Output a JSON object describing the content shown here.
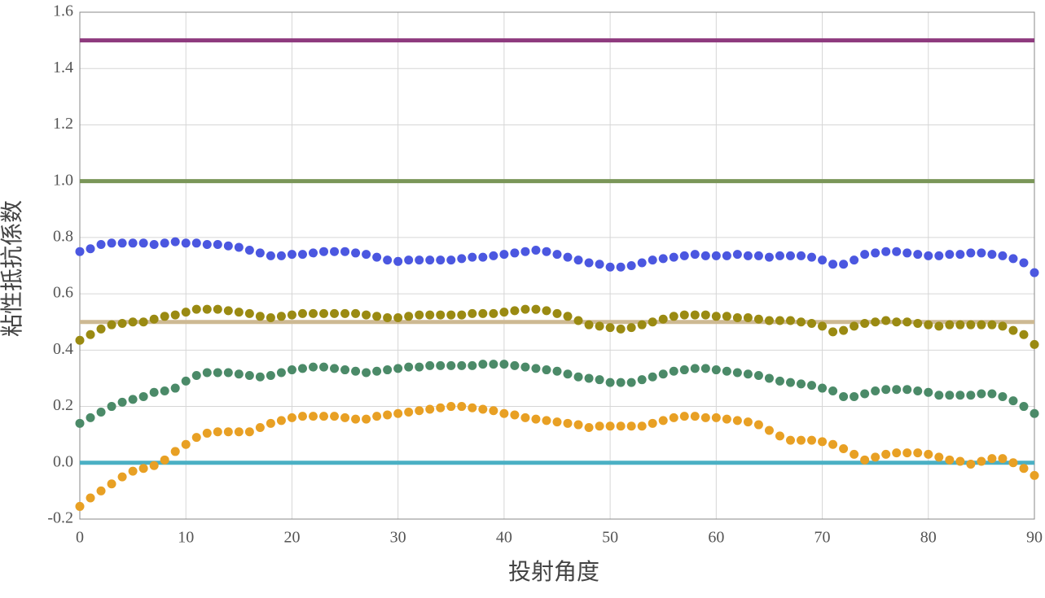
{
  "chart_data": {
    "type": "scatter",
    "x_label": "投射角度",
    "y_label": "粘性抵抗係数",
    "x": [
      0,
      1,
      2,
      3,
      4,
      5,
      6,
      7,
      8,
      9,
      10,
      11,
      12,
      13,
      14,
      15,
      16,
      17,
      18,
      19,
      20,
      21,
      22,
      23,
      24,
      25,
      26,
      27,
      28,
      29,
      30,
      31,
      32,
      33,
      34,
      35,
      36,
      37,
      38,
      39,
      40,
      41,
      42,
      43,
      44,
      45,
      46,
      47,
      48,
      49,
      50,
      51,
      52,
      53,
      54,
      55,
      56,
      57,
      58,
      59,
      60,
      61,
      62,
      63,
      64,
      65,
      66,
      67,
      68,
      69,
      70,
      71,
      72,
      73,
      74,
      75,
      76,
      77,
      78,
      79,
      80,
      81,
      82,
      83,
      84,
      85,
      86,
      87,
      88,
      89,
      90
    ],
    "series": [
      {
        "color": "#4b57e0",
        "values": [
          0.75,
          0.76,
          0.775,
          0.78,
          0.78,
          0.78,
          0.78,
          0.775,
          0.78,
          0.785,
          0.78,
          0.78,
          0.775,
          0.775,
          0.77,
          0.765,
          0.755,
          0.745,
          0.735,
          0.735,
          0.74,
          0.74,
          0.745,
          0.75,
          0.75,
          0.75,
          0.745,
          0.74,
          0.73,
          0.72,
          0.715,
          0.72,
          0.72,
          0.72,
          0.72,
          0.72,
          0.725,
          0.73,
          0.73,
          0.735,
          0.74,
          0.745,
          0.75,
          0.755,
          0.75,
          0.74,
          0.73,
          0.72,
          0.71,
          0.705,
          0.695,
          0.695,
          0.7,
          0.71,
          0.72,
          0.725,
          0.73,
          0.735,
          0.74,
          0.735,
          0.735,
          0.735,
          0.74,
          0.735,
          0.735,
          0.73,
          0.735,
          0.735,
          0.735,
          0.73,
          0.72,
          0.705,
          0.705,
          0.72,
          0.74,
          0.745,
          0.75,
          0.75,
          0.745,
          0.74,
          0.735,
          0.735,
          0.74,
          0.74,
          0.745,
          0.745,
          0.74,
          0.735,
          0.725,
          0.71,
          0.675
        ]
      },
      {
        "color": "#9a8a12",
        "values": [
          0.435,
          0.455,
          0.475,
          0.49,
          0.495,
          0.5,
          0.5,
          0.51,
          0.52,
          0.525,
          0.535,
          0.545,
          0.545,
          0.545,
          0.54,
          0.535,
          0.53,
          0.52,
          0.515,
          0.52,
          0.525,
          0.53,
          0.53,
          0.53,
          0.53,
          0.53,
          0.53,
          0.525,
          0.52,
          0.515,
          0.515,
          0.52,
          0.525,
          0.525,
          0.525,
          0.525,
          0.525,
          0.53,
          0.53,
          0.53,
          0.535,
          0.54,
          0.545,
          0.545,
          0.54,
          0.53,
          0.52,
          0.505,
          0.49,
          0.485,
          0.48,
          0.475,
          0.48,
          0.49,
          0.5,
          0.51,
          0.52,
          0.525,
          0.525,
          0.525,
          0.52,
          0.52,
          0.515,
          0.515,
          0.51,
          0.505,
          0.505,
          0.505,
          0.5,
          0.495,
          0.485,
          0.465,
          0.47,
          0.485,
          0.495,
          0.5,
          0.505,
          0.5,
          0.5,
          0.495,
          0.49,
          0.485,
          0.49,
          0.49,
          0.49,
          0.49,
          0.49,
          0.485,
          0.47,
          0.455,
          0.42
        ]
      },
      {
        "color": "#4b8a68",
        "values": [
          0.14,
          0.16,
          0.18,
          0.2,
          0.215,
          0.225,
          0.235,
          0.25,
          0.255,
          0.265,
          0.29,
          0.31,
          0.32,
          0.32,
          0.32,
          0.315,
          0.31,
          0.305,
          0.31,
          0.32,
          0.33,
          0.335,
          0.34,
          0.34,
          0.335,
          0.33,
          0.325,
          0.32,
          0.325,
          0.33,
          0.335,
          0.34,
          0.34,
          0.345,
          0.345,
          0.345,
          0.345,
          0.345,
          0.35,
          0.35,
          0.35,
          0.345,
          0.34,
          0.335,
          0.33,
          0.325,
          0.315,
          0.305,
          0.3,
          0.295,
          0.285,
          0.285,
          0.285,
          0.295,
          0.305,
          0.315,
          0.325,
          0.33,
          0.335,
          0.335,
          0.33,
          0.325,
          0.32,
          0.315,
          0.31,
          0.3,
          0.29,
          0.285,
          0.28,
          0.275,
          0.265,
          0.255,
          0.235,
          0.235,
          0.245,
          0.255,
          0.26,
          0.26,
          0.26,
          0.255,
          0.25,
          0.24,
          0.24,
          0.24,
          0.24,
          0.245,
          0.245,
          0.235,
          0.22,
          0.2,
          0.175
        ]
      },
      {
        "color": "#e8a024",
        "values": [
          -0.155,
          -0.125,
          -0.1,
          -0.075,
          -0.05,
          -0.03,
          -0.02,
          -0.01,
          0.01,
          0.04,
          0.065,
          0.09,
          0.105,
          0.11,
          0.11,
          0.11,
          0.11,
          0.125,
          0.14,
          0.15,
          0.16,
          0.165,
          0.165,
          0.165,
          0.165,
          0.16,
          0.155,
          0.155,
          0.165,
          0.17,
          0.175,
          0.18,
          0.185,
          0.19,
          0.195,
          0.2,
          0.2,
          0.195,
          0.19,
          0.185,
          0.175,
          0.17,
          0.16,
          0.155,
          0.15,
          0.145,
          0.14,
          0.135,
          0.125,
          0.13,
          0.13,
          0.13,
          0.13,
          0.13,
          0.14,
          0.15,
          0.16,
          0.165,
          0.165,
          0.16,
          0.16,
          0.155,
          0.15,
          0.145,
          0.135,
          0.115,
          0.095,
          0.08,
          0.08,
          0.08,
          0.075,
          0.065,
          0.05,
          0.03,
          0.01,
          0.02,
          0.03,
          0.035,
          0.035,
          0.035,
          0.03,
          0.02,
          0.01,
          0.005,
          -0.005,
          0.005,
          0.015,
          0.015,
          0.0,
          -0.02,
          -0.045
        ]
      }
    ],
    "reference_lines": [
      {
        "value": 1.5,
        "color": "#8e3a7e"
      },
      {
        "value": 1.0,
        "color": "#7a9658"
      },
      {
        "value": 0.5,
        "color": "#cdb993"
      },
      {
        "value": 0.0,
        "color": "#4bb0c4"
      }
    ],
    "xlim": [
      0,
      90
    ],
    "xticks": [
      0,
      10,
      20,
      30,
      40,
      50,
      60,
      70,
      80,
      90
    ],
    "ylim": [
      -0.2,
      1.6
    ],
    "yticks": [
      -0.2,
      {
        "value": 0,
        "label": "0.0"
      },
      0.2,
      0.4,
      0.6,
      0.8,
      {
        "value": 1,
        "label": "1.0"
      },
      1.2,
      1.4,
      1.6
    ],
    "grid": true
  }
}
